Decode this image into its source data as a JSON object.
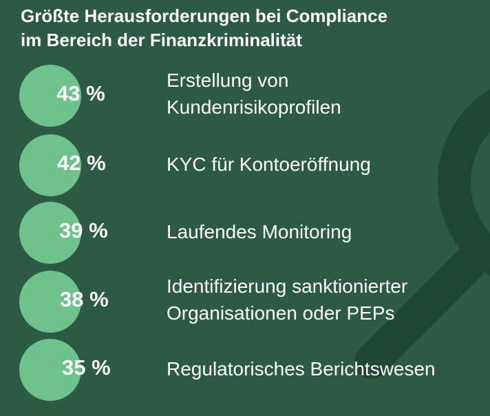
{
  "colors": {
    "background": "#2c5a45",
    "bubble": "#6ec38c",
    "decor": "#1f4636",
    "text": "#ffffff"
  },
  "decor_icon": "magnifying-glass-icon",
  "title_lines": [
    "Größte Herausforderungen bei Compliance",
    "im Bereich der Finanzkriminalität"
  ],
  "chart_data": {
    "type": "bar",
    "title": "Größte Herausforderungen bei Compliance im Bereich der Finanzkriminalität",
    "categories": [
      "Erstellung von Kundenrisikoprofilen",
      "KYC für Kontoeröffnung",
      "Laufendes Monitoring",
      "Identifizierung sanktionierter Organisationen oder PEPs",
      "Regulatorisches Berichtswesen"
    ],
    "values": [
      43,
      42,
      39,
      38,
      35
    ],
    "value_labels": [
      "43 %",
      "42 %",
      "39 %",
      "38 %",
      "35 %"
    ],
    "label_lines": [
      [
        "Erstellung von",
        "Kundenrisikoprofilen"
      ],
      [
        "KYC für Kontoeröffnung"
      ],
      [
        "Laufendes Monitoring"
      ],
      [
        "Identifizierung sanktionierter",
        "Organisationen oder PEPs"
      ],
      [
        "Regulatorisches Berichtswesen"
      ]
    ],
    "unit": "%"
  }
}
